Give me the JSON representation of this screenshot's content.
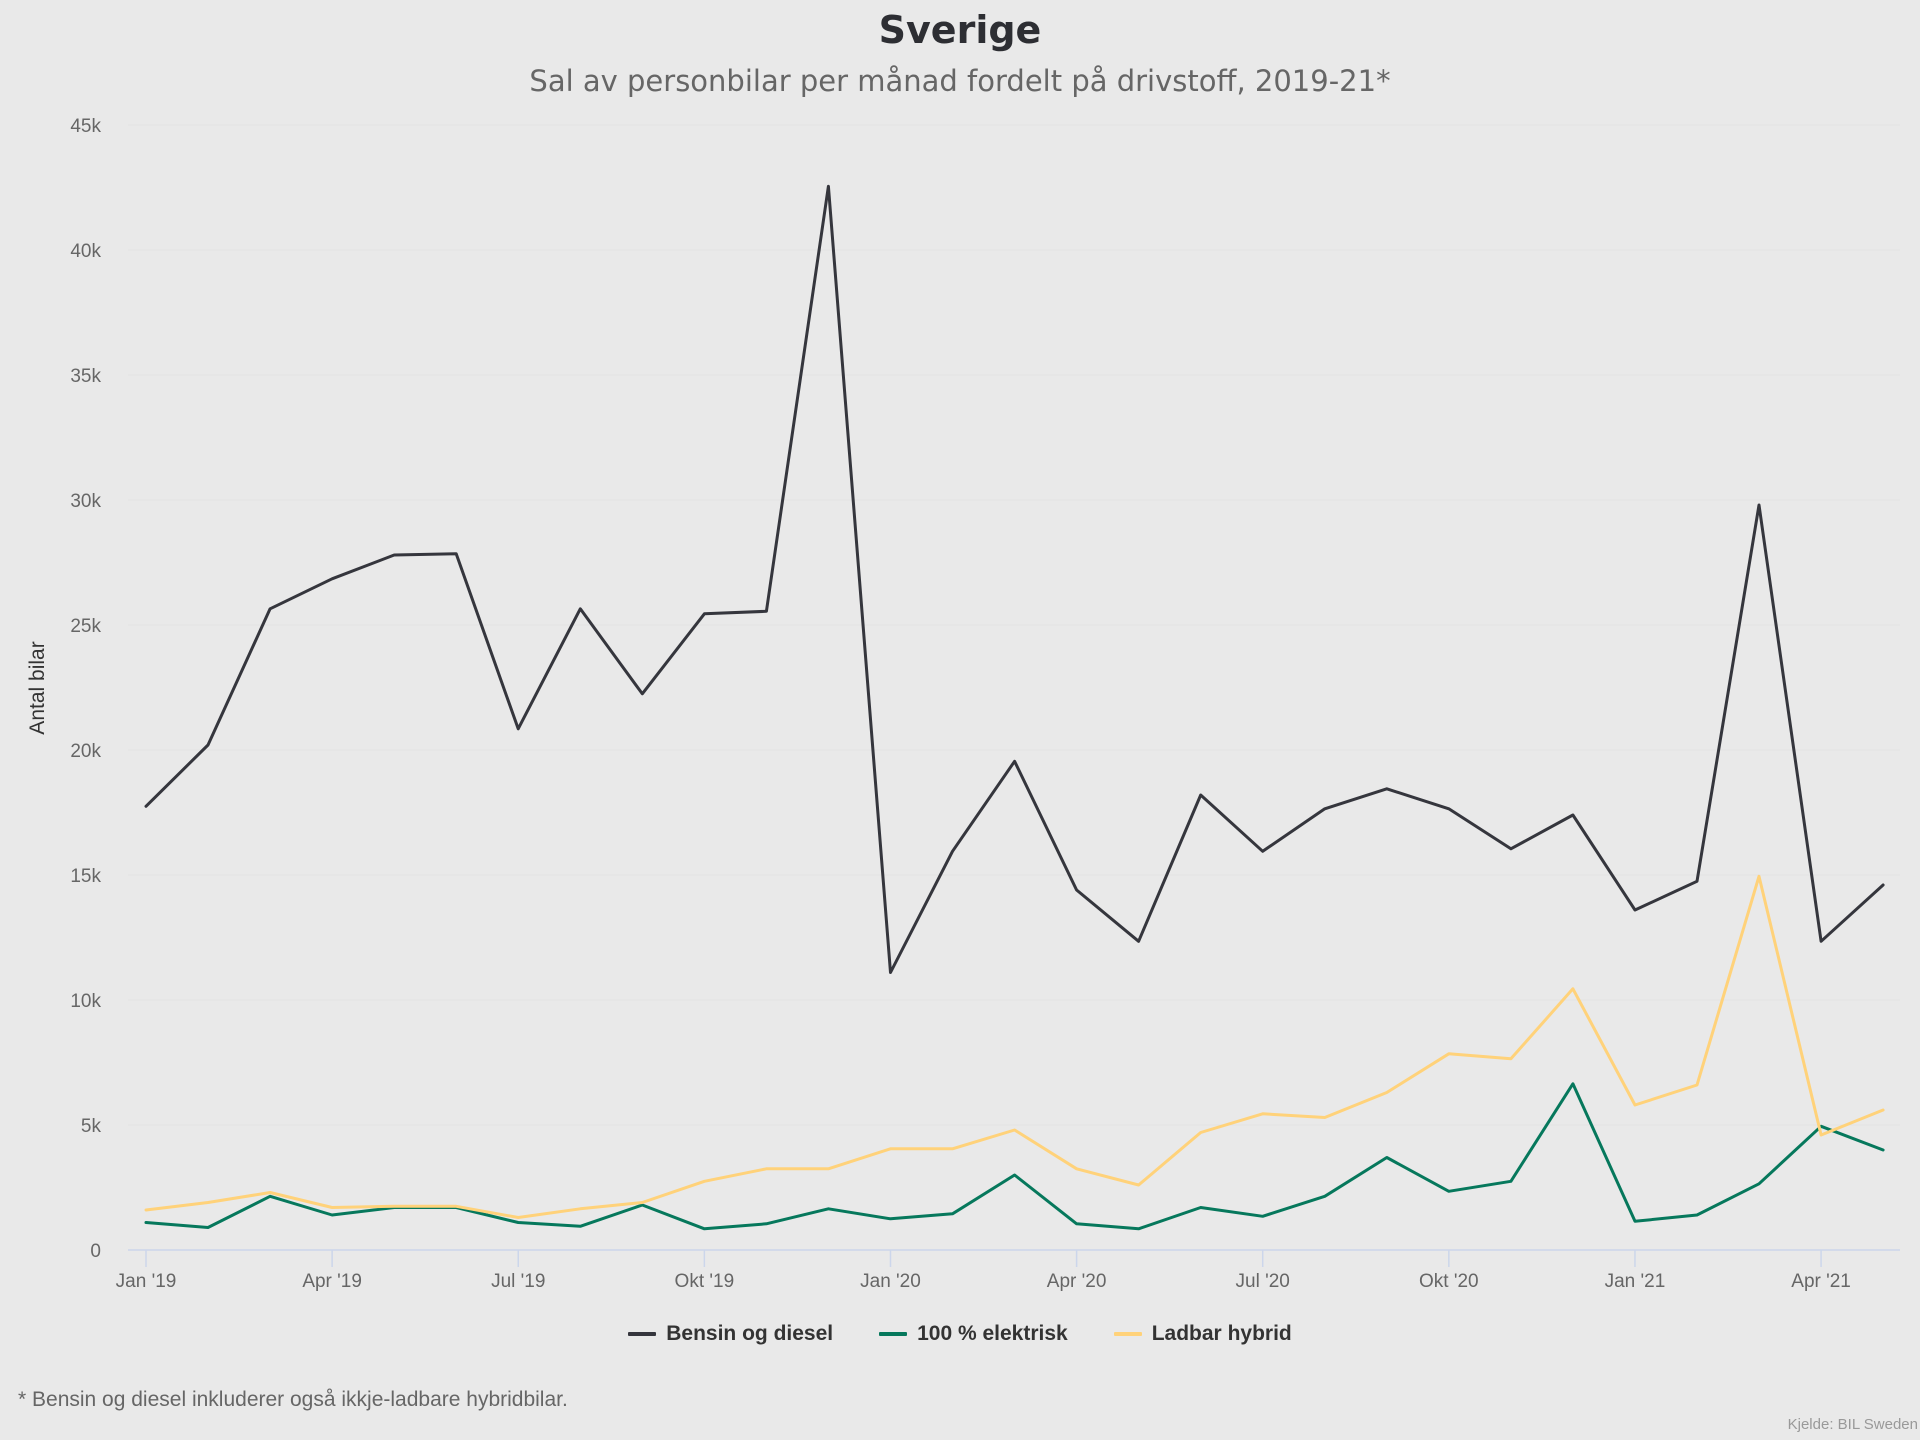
{
  "chart_data": {
    "type": "line",
    "title": "Sverige",
    "subtitle": "Sal av personbilar per månad fordelt på drivstoff, 2019-21*",
    "xlabel": "",
    "ylabel": "Antal bilar",
    "ylim": [
      0,
      45000
    ],
    "grid": true,
    "legend_position": "bottom-center",
    "x": [
      "Jan '19",
      "Feb '19",
      "Mar '19",
      "Apr '19",
      "Mai '19",
      "Jun '19",
      "Jul '19",
      "Aug '19",
      "Sep '19",
      "Okt '19",
      "Nov '19",
      "Des '19",
      "Jan '20",
      "Feb '20",
      "Mar '20",
      "Apr '20",
      "Mai '20",
      "Jun '20",
      "Jul '20",
      "Aug '20",
      "Sep '20",
      "Okt '20",
      "Nov '20",
      "Des '20",
      "Jan '21",
      "Feb '21",
      "Mar '21",
      "Apr '21",
      "Mai '21"
    ],
    "x_ticks": [
      {
        "index": 0,
        "label": "Jan '19"
      },
      {
        "index": 3,
        "label": "Apr '19"
      },
      {
        "index": 6,
        "label": "Jul '19"
      },
      {
        "index": 9,
        "label": "Okt '19"
      },
      {
        "index": 12,
        "label": "Jan '20"
      },
      {
        "index": 15,
        "label": "Apr '20"
      },
      {
        "index": 18,
        "label": "Jul '20"
      },
      {
        "index": 21,
        "label": "Okt '20"
      },
      {
        "index": 24,
        "label": "Jan '21"
      },
      {
        "index": 27,
        "label": "Apr '21"
      }
    ],
    "y_ticks": [
      {
        "value": 0,
        "label": "0"
      },
      {
        "value": 5000,
        "label": "5k"
      },
      {
        "value": 10000,
        "label": "10k"
      },
      {
        "value": 15000,
        "label": "15k"
      },
      {
        "value": 20000,
        "label": "20k"
      },
      {
        "value": 25000,
        "label": "25k"
      },
      {
        "value": 30000,
        "label": "30k"
      },
      {
        "value": 35000,
        "label": "35k"
      },
      {
        "value": 40000,
        "label": "40k"
      },
      {
        "value": 45000,
        "label": "45k"
      }
    ],
    "series": [
      {
        "name": "Bensin og diesel",
        "color": "#35363d",
        "values": [
          17750,
          20200,
          25650,
          26850,
          27800,
          27850,
          20850,
          25650,
          22250,
          25450,
          25550,
          42550,
          11100,
          15950,
          19550,
          14400,
          12350,
          18200,
          15950,
          17650,
          18450,
          17650,
          16050,
          17400,
          13600,
          14750,
          29800,
          12350,
          14600
        ]
      },
      {
        "name": "100 % elektrisk",
        "color": "#06785c",
        "values": [
          1100,
          900,
          2150,
          1400,
          1700,
          1700,
          1100,
          950,
          1800,
          850,
          1050,
          1650,
          1250,
          1450,
          3000,
          1050,
          850,
          1700,
          1350,
          2150,
          3700,
          2350,
          2750,
          6650,
          1150,
          1400,
          2650,
          4950,
          4000
        ]
      },
      {
        "name": "Ladbar hybrid",
        "color": "#ffd27a",
        "values": [
          1600,
          1900,
          2300,
          1700,
          1750,
          1750,
          1300,
          1650,
          1900,
          2750,
          3250,
          3250,
          4050,
          4050,
          4800,
          3250,
          2600,
          4700,
          5450,
          5300,
          6300,
          7850,
          7650,
          10450,
          5800,
          6600,
          14950,
          4600,
          5600
        ]
      }
    ]
  },
  "footnote": "* Bensin og diesel inkluderer også ikkje-ladbare hybridbilar.",
  "credit": "Kjelde: BIL Sweden"
}
